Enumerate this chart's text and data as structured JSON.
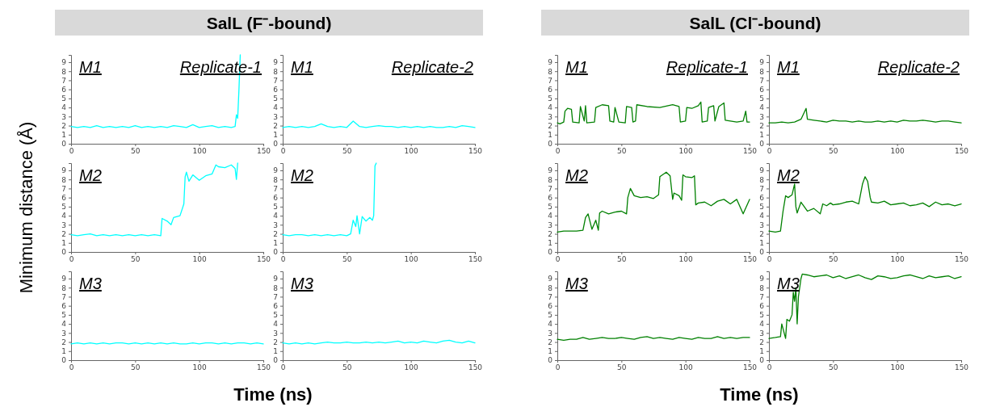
{
  "chart_data": [
    {
      "type": "line",
      "title": "SalL (F⁻-bound)",
      "ylabel": "Minimum distance (Å)",
      "annotations": [
        "M1",
        "Replicate-1"
      ],
      "xlim": [
        0,
        150
      ],
      "xticks": [
        0,
        50,
        100,
        150
      ],
      "ylim": [
        0,
        9.8
      ],
      "yticks": [
        0,
        1,
        2,
        3,
        4,
        5,
        6,
        7,
        8,
        9
      ],
      "x": [
        0,
        5,
        10,
        15,
        20,
        25,
        30,
        35,
        40,
        45,
        50,
        55,
        60,
        65,
        70,
        75,
        80,
        85,
        90,
        95,
        100,
        105,
        110,
        115,
        120,
        125,
        128,
        129,
        130,
        131,
        132
      ],
      "series": [
        {
          "color": "#00ffff",
          "values": [
            1.9,
            1.8,
            1.9,
            1.8,
            2.0,
            1.8,
            1.9,
            1.8,
            1.9,
            1.8,
            2.0,
            1.8,
            1.9,
            1.8,
            1.9,
            1.8,
            2.0,
            1.9,
            1.8,
            2.1,
            1.8,
            1.9,
            2.0,
            1.8,
            1.9,
            1.8,
            1.9,
            3.2,
            2.8,
            6,
            9.8
          ]
        }
      ]
    },
    {
      "type": "line",
      "annotations": [
        "M1",
        "Replicate-2"
      ],
      "xlim": [
        0,
        150
      ],
      "xticks": [
        0,
        50,
        100,
        150
      ],
      "ylim": [
        0,
        9.8
      ],
      "yticks": [
        0,
        1,
        2,
        3,
        4,
        5,
        6,
        7,
        8,
        9
      ],
      "x": [
        0,
        5,
        10,
        15,
        20,
        25,
        30,
        35,
        40,
        45,
        50,
        55,
        60,
        65,
        70,
        75,
        80,
        85,
        90,
        95,
        100,
        105,
        110,
        115,
        120,
        125,
        130,
        135,
        140,
        145,
        150
      ],
      "series": [
        {
          "color": "#00ffff",
          "values": [
            1.8,
            1.9,
            1.8,
            1.9,
            1.8,
            1.9,
            2.2,
            1.9,
            1.8,
            1.9,
            1.8,
            2.5,
            1.9,
            1.8,
            1.9,
            2.0,
            1.9,
            1.9,
            1.8,
            1.9,
            1.8,
            1.9,
            1.8,
            1.9,
            1.8,
            1.8,
            1.9,
            1.8,
            2.0,
            1.9,
            1.8
          ]
        }
      ]
    },
    {
      "type": "line",
      "title": "SalL (Cl⁻-bound)",
      "annotations": [
        "M1",
        "Replicate-1"
      ],
      "xlim": [
        0,
        150
      ],
      "xticks": [
        0,
        50,
        100,
        150
      ],
      "ylim": [
        0,
        9.8
      ],
      "yticks": [
        0,
        1,
        2,
        3,
        4,
        5,
        6,
        7,
        8,
        9
      ],
      "x": [
        0,
        2,
        5,
        6,
        8,
        11,
        12,
        17,
        18,
        21,
        22,
        23,
        29,
        30,
        35,
        40,
        41,
        44,
        45,
        48,
        53,
        54,
        58,
        59,
        61,
        62,
        70,
        80,
        90,
        95,
        96,
        100,
        101,
        105,
        110,
        112,
        113,
        117,
        118,
        122,
        123,
        126,
        130,
        131,
        140,
        145,
        147,
        148,
        150
      ],
      "series": [
        {
          "color": "#008000",
          "values": [
            2.3,
            2.2,
            2.4,
            3.6,
            3.9,
            3.8,
            2.4,
            2.3,
            4.1,
            2.5,
            4.2,
            2.3,
            2.4,
            4.0,
            4.3,
            4.2,
            2.5,
            2.4,
            4.0,
            2.4,
            2.3,
            4.1,
            4.0,
            2.4,
            2.5,
            4.3,
            4.1,
            4.0,
            4.3,
            4.1,
            2.4,
            2.5,
            4.0,
            3.9,
            4.2,
            4.6,
            2.4,
            2.5,
            4.0,
            4.2,
            2.5,
            4.1,
            4.5,
            2.6,
            2.4,
            2.5,
            3.6,
            2.4,
            2.4
          ]
        }
      ]
    },
    {
      "type": "line",
      "annotations": [
        "M1",
        "Replicate-2"
      ],
      "xlim": [
        0,
        150
      ],
      "xticks": [
        0,
        50,
        100,
        150
      ],
      "ylim": [
        0,
        9.8
      ],
      "yticks": [
        0,
        1,
        2,
        3,
        4,
        5,
        6,
        7,
        8,
        9
      ],
      "x": [
        0,
        5,
        10,
        15,
        20,
        25,
        29,
        30,
        35,
        40,
        45,
        50,
        55,
        60,
        65,
        70,
        75,
        80,
        85,
        90,
        95,
        100,
        105,
        110,
        115,
        120,
        125,
        130,
        135,
        140,
        145,
        150
      ],
      "series": [
        {
          "color": "#008000",
          "values": [
            2.3,
            2.3,
            2.4,
            2.3,
            2.4,
            2.7,
            3.9,
            2.7,
            2.6,
            2.5,
            2.4,
            2.6,
            2.5,
            2.5,
            2.4,
            2.5,
            2.4,
            2.4,
            2.5,
            2.4,
            2.5,
            2.4,
            2.6,
            2.5,
            2.5,
            2.6,
            2.5,
            2.4,
            2.5,
            2.5,
            2.4,
            2.3
          ]
        }
      ]
    },
    {
      "type": "line",
      "annotations": [
        "M2"
      ],
      "xlim": [
        0,
        150
      ],
      "xticks": [
        0,
        50,
        100,
        150
      ],
      "ylim": [
        0,
        9.8
      ],
      "yticks": [
        0,
        1,
        2,
        3,
        4,
        5,
        6,
        7,
        8,
        9
      ],
      "x": [
        0,
        5,
        10,
        15,
        20,
        25,
        30,
        35,
        40,
        45,
        50,
        55,
        60,
        65,
        70,
        71,
        75,
        78,
        80,
        85,
        88,
        89,
        90,
        92,
        95,
        100,
        105,
        110,
        113,
        115,
        120,
        125,
        128,
        129,
        130
      ],
      "series": [
        {
          "color": "#00ffff",
          "values": [
            1.9,
            1.8,
            1.9,
            2.0,
            1.8,
            1.9,
            1.8,
            1.9,
            1.8,
            1.9,
            1.8,
            1.9,
            1.8,
            1.9,
            1.8,
            3.7,
            3.4,
            3.0,
            3.8,
            4.0,
            5.3,
            8.3,
            8.8,
            7.8,
            8.5,
            7.9,
            8.4,
            8.6,
            9.6,
            9.4,
            9.3,
            9.6,
            9.2,
            8.0,
            9.8
          ]
        }
      ]
    },
    {
      "type": "line",
      "annotations": [
        "M2"
      ],
      "xlim": [
        0,
        150
      ],
      "xticks": [
        0,
        50,
        100,
        150
      ],
      "ylim": [
        0,
        9.8
      ],
      "yticks": [
        0,
        1,
        2,
        3,
        4,
        5,
        6,
        7,
        8,
        9
      ],
      "x": [
        0,
        5,
        10,
        15,
        20,
        25,
        30,
        35,
        40,
        45,
        50,
        53,
        55,
        57,
        58,
        60,
        62,
        65,
        68,
        70,
        71,
        72,
        73
      ],
      "series": [
        {
          "color": "#00ffff",
          "values": [
            1.9,
            1.8,
            1.9,
            1.9,
            1.8,
            1.9,
            1.8,
            1.9,
            1.8,
            1.9,
            1.8,
            2.0,
            3.5,
            2.8,
            4.0,
            2.0,
            3.9,
            3.4,
            3.8,
            3.5,
            4.0,
            9.5,
            9.8
          ]
        }
      ]
    },
    {
      "type": "line",
      "annotations": [
        "M2"
      ],
      "xlim": [
        0,
        150
      ],
      "xticks": [
        0,
        50,
        100,
        150
      ],
      "ylim": [
        0,
        9.8
      ],
      "yticks": [
        0,
        1,
        2,
        3,
        4,
        5,
        6,
        7,
        8,
        9
      ],
      "x": [
        0,
        5,
        10,
        15,
        20,
        22,
        24,
        27,
        30,
        32,
        33,
        35,
        40,
        45,
        50,
        54,
        55,
        57,
        60,
        65,
        70,
        75,
        79,
        80,
        85,
        88,
        90,
        91,
        95,
        97,
        98,
        100,
        105,
        107,
        108,
        110,
        115,
        120,
        125,
        130,
        135,
        140,
        145,
        150
      ],
      "series": [
        {
          "color": "#008000",
          "values": [
            2.2,
            2.3,
            2.3,
            2.3,
            2.4,
            3.8,
            4.2,
            2.5,
            3.5,
            2.4,
            4.3,
            4.5,
            4.2,
            4.4,
            4.5,
            4.2,
            6.0,
            7.0,
            6.2,
            6.0,
            6.1,
            5.9,
            6.3,
            8.3,
            8.8,
            8.4,
            5.8,
            6.5,
            6.2,
            5.7,
            8.5,
            8.3,
            8.2,
            8.4,
            5.2,
            5.4,
            5.5,
            5.1,
            5.6,
            5.8,
            5.3,
            5.8,
            4.2,
            5.8
          ]
        }
      ]
    },
    {
      "type": "line",
      "annotations": [
        "M2"
      ],
      "xlim": [
        0,
        150
      ],
      "xticks": [
        0,
        50,
        100,
        150
      ],
      "ylim": [
        0,
        9.8
      ],
      "yticks": [
        0,
        1,
        2,
        3,
        4,
        5,
        6,
        7,
        8,
        9
      ],
      "x": [
        0,
        5,
        9,
        11,
        13,
        15,
        18,
        20,
        21,
        22,
        25,
        30,
        35,
        40,
        42,
        45,
        48,
        50,
        55,
        60,
        65,
        70,
        73,
        75,
        77,
        79,
        80,
        85,
        90,
        95,
        100,
        105,
        110,
        115,
        120,
        125,
        130,
        135,
        140,
        145,
        150
      ],
      "series": [
        {
          "color": "#008000",
          "values": [
            2.3,
            2.2,
            2.3,
            4.5,
            6.2,
            6.0,
            6.3,
            7.5,
            5.0,
            4.3,
            5.5,
            4.5,
            4.8,
            4.2,
            5.3,
            5.1,
            5.4,
            5.2,
            5.3,
            5.5,
            5.6,
            5.3,
            7.5,
            8.3,
            7.8,
            6.0,
            5.5,
            5.4,
            5.6,
            5.2,
            5.3,
            5.4,
            5.1,
            5.2,
            5.4,
            5.0,
            5.5,
            5.2,
            5.3,
            5.1,
            5.3
          ]
        }
      ]
    },
    {
      "type": "line",
      "xlabel": "Time (ns)",
      "annotations": [
        "M3"
      ],
      "xlim": [
        0,
        150
      ],
      "xticks": [
        0,
        50,
        100,
        150
      ],
      "ylim": [
        0,
        9.8
      ],
      "yticks": [
        0,
        1,
        2,
        3,
        4,
        5,
        6,
        7,
        8,
        9
      ],
      "x": [
        0,
        5,
        10,
        15,
        20,
        25,
        30,
        35,
        40,
        45,
        50,
        55,
        60,
        65,
        70,
        75,
        80,
        85,
        90,
        95,
        100,
        105,
        110,
        115,
        120,
        125,
        130,
        135,
        140,
        145,
        150
      ],
      "series": [
        {
          "color": "#00ffff",
          "values": [
            1.8,
            1.9,
            1.8,
            1.9,
            1.8,
            1.9,
            1.8,
            1.9,
            1.9,
            1.8,
            1.9,
            1.8,
            1.9,
            1.8,
            1.9,
            1.8,
            1.9,
            1.8,
            1.8,
            1.9,
            1.8,
            1.9,
            1.9,
            1.8,
            1.9,
            1.8,
            1.9,
            1.9,
            1.8,
            1.9,
            1.8
          ]
        }
      ]
    },
    {
      "type": "line",
      "annotations": [
        "M3"
      ],
      "xlim": [
        0,
        150
      ],
      "xticks": [
        0,
        50,
        100,
        150
      ],
      "ylim": [
        0,
        9.8
      ],
      "yticks": [
        0,
        1,
        2,
        3,
        4,
        5,
        6,
        7,
        8,
        9
      ],
      "x": [
        0,
        5,
        10,
        15,
        20,
        25,
        30,
        35,
        40,
        45,
        50,
        55,
        60,
        65,
        70,
        75,
        80,
        85,
        90,
        95,
        100,
        105,
        110,
        115,
        120,
        125,
        130,
        135,
        140,
        145,
        150
      ],
      "series": [
        {
          "color": "#00ffff",
          "values": [
            1.9,
            1.8,
            1.9,
            1.8,
            1.9,
            1.8,
            1.9,
            2.0,
            1.9,
            1.9,
            2.0,
            1.9,
            1.9,
            2.0,
            1.9,
            2.0,
            1.9,
            2.0,
            2.1,
            1.9,
            2.0,
            1.9,
            2.1,
            2.0,
            1.9,
            2.1,
            2.2,
            2.0,
            1.9,
            2.1,
            1.9
          ]
        }
      ]
    },
    {
      "type": "line",
      "xlabel": "Time (ns)",
      "annotations": [
        "M3"
      ],
      "xlim": [
        0,
        150
      ],
      "xticks": [
        0,
        50,
        100,
        150
      ],
      "ylim": [
        0,
        9.8
      ],
      "yticks": [
        0,
        1,
        2,
        3,
        4,
        5,
        6,
        7,
        8,
        9
      ],
      "x": [
        0,
        5,
        10,
        15,
        20,
        25,
        30,
        35,
        40,
        45,
        50,
        55,
        60,
        65,
        70,
        75,
        80,
        85,
        90,
        95,
        100,
        105,
        110,
        115,
        120,
        125,
        130,
        135,
        140,
        145,
        150
      ],
      "series": [
        {
          "color": "#008000",
          "values": [
            2.3,
            2.2,
            2.3,
            2.3,
            2.5,
            2.3,
            2.4,
            2.5,
            2.4,
            2.4,
            2.5,
            2.4,
            2.3,
            2.5,
            2.6,
            2.4,
            2.5,
            2.4,
            2.3,
            2.5,
            2.4,
            2.3,
            2.5,
            2.4,
            2.4,
            2.6,
            2.4,
            2.5,
            2.4,
            2.5,
            2.5
          ]
        }
      ]
    },
    {
      "type": "line",
      "annotations": [
        "M3"
      ],
      "xlim": [
        0,
        150
      ],
      "xticks": [
        0,
        50,
        100,
        150
      ],
      "ylim": [
        0,
        9.8
      ],
      "yticks": [
        0,
        1,
        2,
        3,
        4,
        5,
        6,
        7,
        8,
        9
      ],
      "x": [
        0,
        5,
        9,
        10,
        13,
        14,
        16,
        18,
        19,
        20,
        21,
        22,
        23,
        25,
        26,
        30,
        35,
        40,
        45,
        50,
        55,
        60,
        65,
        70,
        75,
        80,
        85,
        90,
        95,
        100,
        105,
        110,
        115,
        120,
        125,
        130,
        135,
        140,
        145,
        150
      ],
      "series": [
        {
          "color": "#008000",
          "values": [
            2.4,
            2.5,
            2.6,
            4.0,
            2.4,
            4.5,
            4.3,
            5.0,
            7.5,
            6.5,
            8.0,
            4.0,
            7.0,
            9.0,
            9.5,
            9.4,
            9.2,
            9.3,
            9.4,
            9.1,
            9.3,
            9.0,
            9.2,
            9.4,
            9.1,
            8.9,
            9.3,
            9.2,
            9.0,
            9.1,
            9.3,
            9.4,
            9.2,
            9.0,
            9.3,
            9.1,
            9.2,
            9.3,
            9.0,
            9.2
          ]
        }
      ]
    }
  ]
}
